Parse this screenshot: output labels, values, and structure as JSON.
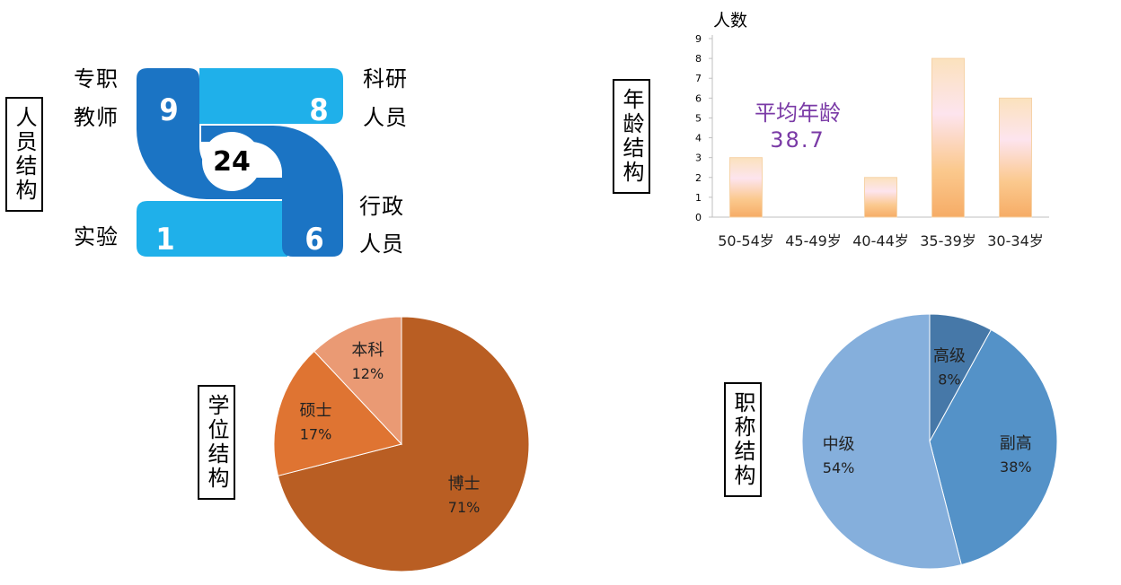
{
  "staff": {
    "title": "人员结构",
    "total": "24",
    "teachers": {
      "label_1": "专职",
      "label_2": "教师",
      "value": "9"
    },
    "research": {
      "label_1": "科研",
      "label_2": "人员",
      "value": "8"
    },
    "admin": {
      "label_1": "行政",
      "label_2": "人员",
      "value": "6"
    },
    "lab": {
      "label_1": "实验",
      "value": "1"
    },
    "colors": {
      "dark": "#1b74c4",
      "light": "#1fb0ea"
    }
  },
  "age": {
    "title": "年龄结构",
    "avg_label": "平均年龄",
    "avg_value": "38.7"
  },
  "degree": {
    "title": "学位结构"
  },
  "rank": {
    "title": "职称结构"
  },
  "chart_data": [
    {
      "type": "bar",
      "ylabel": "人数",
      "categories": [
        "50-54岁",
        "45-49岁",
        "40-44岁",
        "35-39岁",
        "30-34岁"
      ],
      "values": [
        3,
        0,
        2,
        8,
        6
      ],
      "ylim": [
        0,
        9
      ],
      "yticks": [
        0,
        1,
        2,
        3,
        4,
        5,
        6,
        7,
        8,
        9
      ],
      "grid": false
    },
    {
      "type": "pie",
      "labels": [
        "博士",
        "硕士",
        "本科"
      ],
      "values": [
        71,
        17,
        12
      ],
      "value_labels": [
        "71%",
        "17%",
        "12%"
      ],
      "colors": [
        "#b95e23",
        "#df7432",
        "#ea9a74"
      ]
    },
    {
      "type": "pie",
      "labels": [
        "高级",
        "副高",
        "中级"
      ],
      "values": [
        8,
        38,
        54
      ],
      "value_labels": [
        "8%",
        "38%",
        "54%"
      ],
      "colors": [
        "#4678a8",
        "#5492c8",
        "#85afdc"
      ]
    }
  ]
}
